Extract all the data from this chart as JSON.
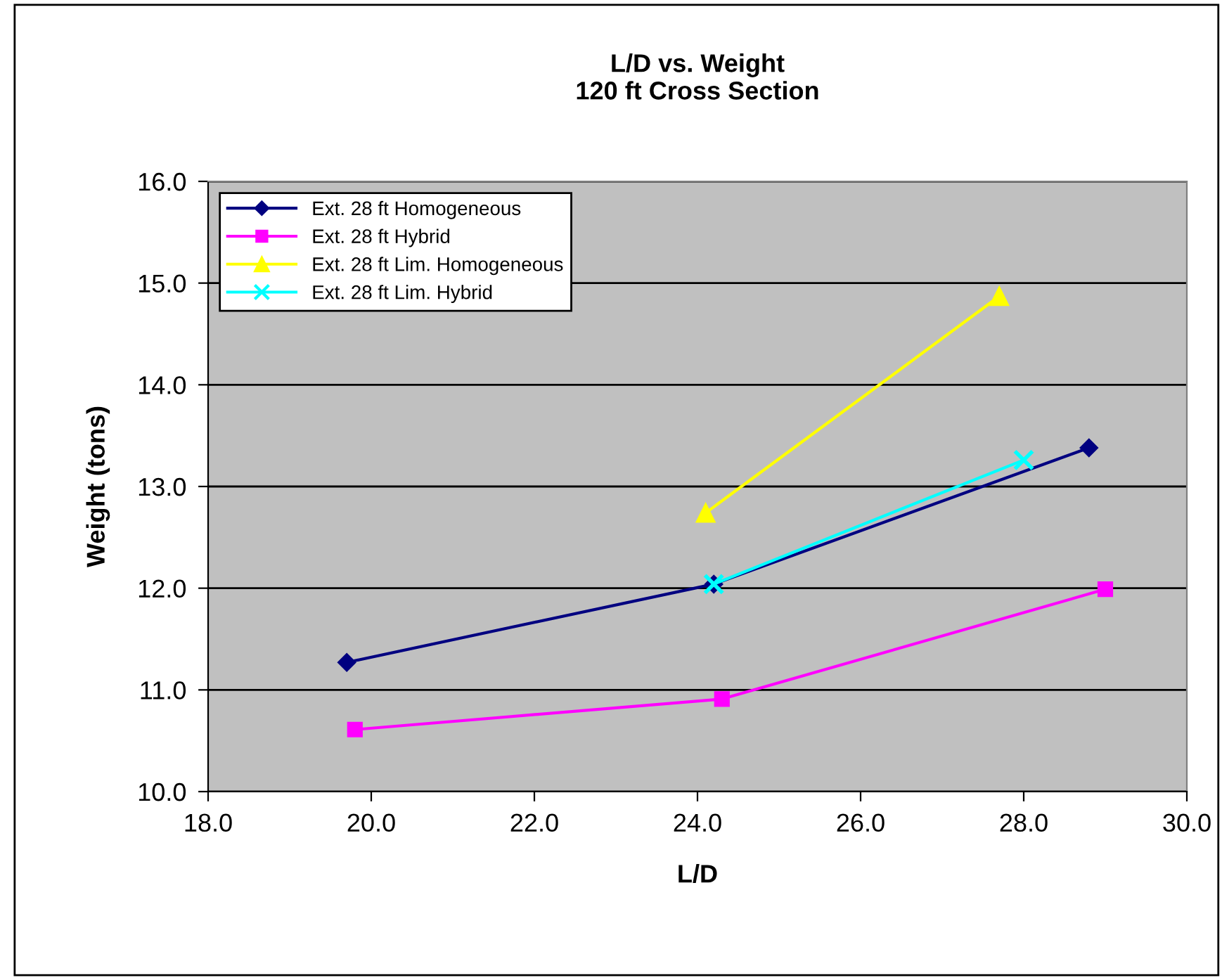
{
  "chart_data": {
    "type": "line",
    "title": "L/D vs. Weight\n120 ft Cross Section",
    "xlabel": "L/D",
    "ylabel": "Weight (tons)",
    "series": [
      {
        "name": "Ext. 28 ft Homogeneous",
        "color": "#000080",
        "marker": "diamond",
        "x": [
          19.7,
          24.2,
          28.8
        ],
        "values": [
          11.27,
          12.04,
          13.38
        ]
      },
      {
        "name": "Ext. 28 ft Hybrid",
        "color": "#ff00ff",
        "marker": "square",
        "x": [
          19.8,
          24.3,
          29.0
        ],
        "values": [
          10.61,
          10.91,
          11.99
        ]
      },
      {
        "name": "Ext. 28 ft Lim. Homogeneous",
        "color": "#ffff00",
        "marker": "triangle",
        "x": [
          24.1,
          27.7
        ],
        "values": [
          12.74,
          14.87
        ]
      },
      {
        "name": "Ext. 28 ft Lim. Hybrid",
        "color": "#00ffff",
        "marker": "cross",
        "x": [
          24.2,
          28.0
        ],
        "values": [
          12.04,
          13.26
        ]
      }
    ],
    "xlim": [
      18.0,
      30.0
    ],
    "xticks": [
      {
        "value": 18,
        "label": "18.0"
      },
      {
        "value": 20,
        "label": "20.0"
      },
      {
        "value": 22,
        "label": "22.0"
      },
      {
        "value": 24,
        "label": "24.0"
      },
      {
        "value": 26,
        "label": "26.0"
      },
      {
        "value": 28,
        "label": "28.0"
      },
      {
        "value": 30,
        "label": "30.0"
      }
    ],
    "ylim": [
      10.0,
      16.0
    ],
    "yticks": [
      {
        "value": 10,
        "label": "10.0"
      },
      {
        "value": 11,
        "label": "11.0"
      },
      {
        "value": 12,
        "label": "12.0"
      },
      {
        "value": 13,
        "label": "13.0"
      },
      {
        "value": 14,
        "label": "14.0"
      },
      {
        "value": 15,
        "label": "15.0"
      },
      {
        "value": 16,
        "label": "16.0"
      }
    ],
    "grid": "y",
    "legend": "top left",
    "line_style": "solid"
  }
}
